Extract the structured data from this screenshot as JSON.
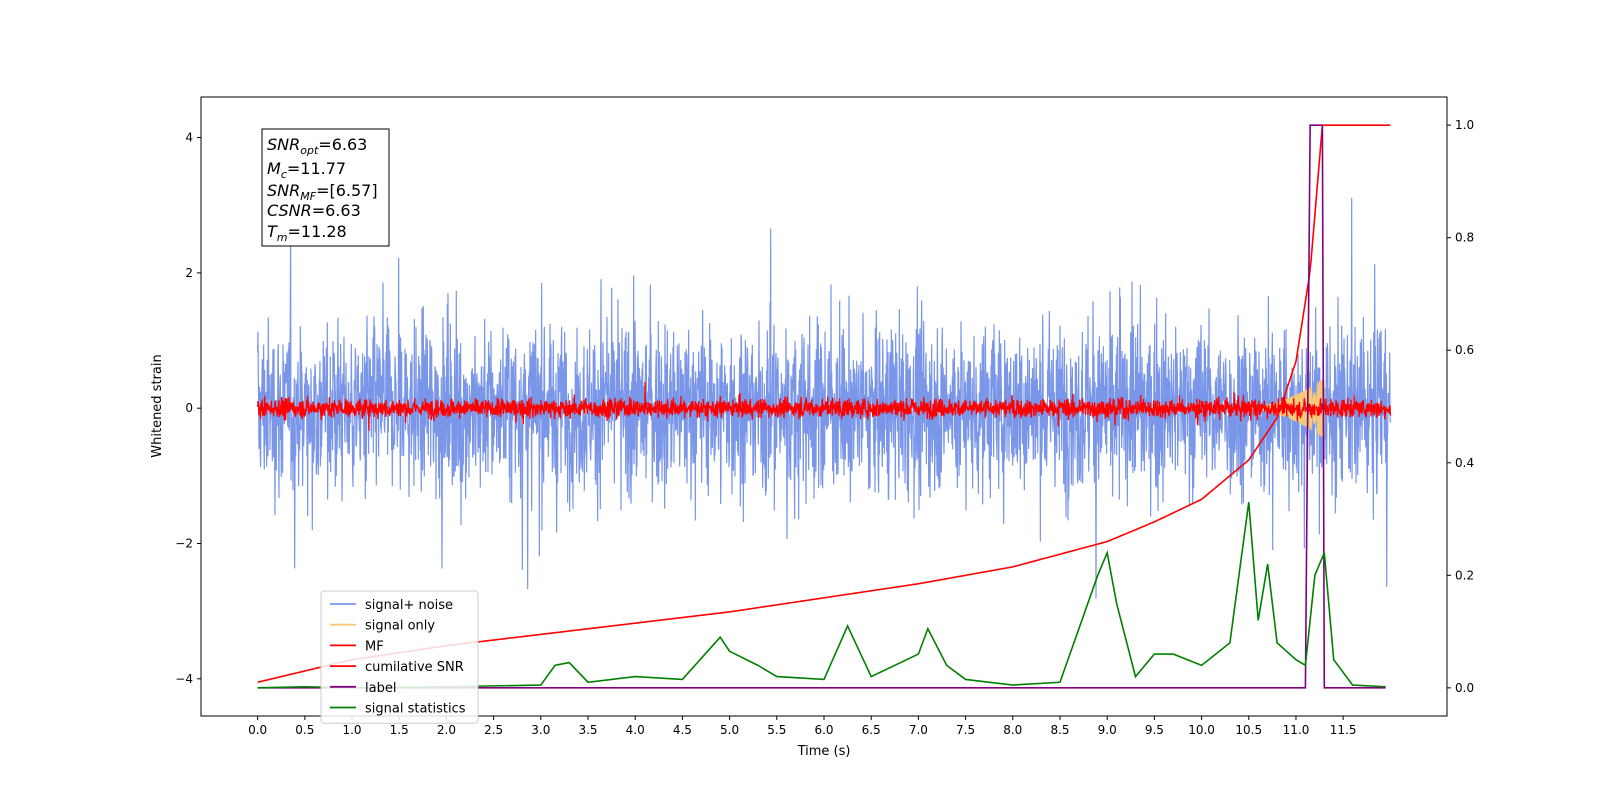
{
  "chart_data": {
    "type": "line",
    "xlabel": "Time (s)",
    "ylabel": "Whitened strain",
    "xlim": [
      -0.6,
      12.6
    ],
    "ylim": [
      -4.55,
      4.6
    ],
    "y2lim": [
      -0.05,
      1.05
    ],
    "grid": false,
    "legend_position": "lower-left",
    "x_ticks": [
      "0.0",
      "0.5",
      "1.0",
      "1.5",
      "2.0",
      "2.5",
      "3.0",
      "3.5",
      "4.0",
      "4.5",
      "5.0",
      "5.5",
      "6.0",
      "6.5",
      "7.0",
      "7.5",
      "8.0",
      "8.5",
      "9.0",
      "9.5",
      "10.0",
      "10.5",
      "11.0",
      "11.5"
    ],
    "y_ticks": [
      "−4",
      "−2",
      "0",
      "2",
      "4"
    ],
    "y2_ticks": [
      "0.0",
      "0.2",
      "0.4",
      "0.6",
      "0.8",
      "1.0"
    ],
    "annotation": {
      "snr_opt": "=6.63",
      "mc": "=11.77",
      "snr_mf": "=[6.57]",
      "csnr": "=6.63",
      "tm": "=11.28"
    },
    "series": [
      {
        "name": "signal+ noise",
        "color": "#7a96e8",
        "axis": "left",
        "style": "noise",
        "x_range": [
          0,
          12.0
        ],
        "amplitude": 1.6
      },
      {
        "name": "signal only",
        "color": "#f5c97a",
        "axis": "left",
        "style": "chirp",
        "x_range": [
          10.4,
          11.3
        ],
        "peak_amplitude": 0.45
      },
      {
        "name": "MF",
        "color": "#ff0000",
        "axis": "left",
        "style": "noise",
        "x_range": [
          0,
          12.0
        ],
        "amplitude": 0.18
      },
      {
        "name": "cumilative SNR",
        "color": "#ff0000",
        "axis": "right",
        "x": [
          0.0,
          1.0,
          2.0,
          3.0,
          4.0,
          5.0,
          6.0,
          7.0,
          8.0,
          9.0,
          9.5,
          10.0,
          10.5,
          10.8,
          11.0,
          11.15,
          11.28,
          11.5,
          12.0
        ],
        "y": [
          0.01,
          0.05,
          0.075,
          0.095,
          0.115,
          0.135,
          0.16,
          0.185,
          0.215,
          0.26,
          0.295,
          0.335,
          0.405,
          0.48,
          0.58,
          0.74,
          1.0,
          1.0,
          1.0
        ]
      },
      {
        "name": "label",
        "color": "#800080",
        "axis": "right",
        "x": [
          0.0,
          11.1,
          11.15,
          11.22,
          11.28,
          11.3,
          11.35,
          11.95
        ],
        "y": [
          0.0,
          0.0,
          1.0,
          1.0,
          1.0,
          0.0,
          0.0,
          0.0
        ]
      },
      {
        "name": "signal statistics",
        "color": "#008000",
        "axis": "right",
        "x": [
          0.0,
          0.5,
          1.0,
          2.0,
          3.0,
          3.15,
          3.3,
          3.5,
          4.0,
          4.5,
          4.9,
          5.0,
          5.3,
          5.5,
          6.0,
          6.25,
          6.5,
          7.0,
          7.1,
          7.3,
          7.5,
          8.0,
          8.5,
          8.9,
          9.0,
          9.1,
          9.3,
          9.5,
          9.7,
          10.0,
          10.3,
          10.5,
          10.6,
          10.7,
          10.8,
          11.0,
          11.1,
          11.2,
          11.3,
          11.4,
          11.6,
          11.95
        ],
        "y": [
          0.0,
          0.002,
          0.0,
          0.002,
          0.005,
          0.04,
          0.045,
          0.01,
          0.02,
          0.015,
          0.09,
          0.065,
          0.04,
          0.02,
          0.015,
          0.11,
          0.02,
          0.06,
          0.105,
          0.04,
          0.015,
          0.005,
          0.01,
          0.2,
          0.24,
          0.15,
          0.02,
          0.06,
          0.06,
          0.04,
          0.08,
          0.33,
          0.12,
          0.22,
          0.08,
          0.05,
          0.04,
          0.2,
          0.24,
          0.05,
          0.005,
          0.002
        ]
      }
    ]
  }
}
